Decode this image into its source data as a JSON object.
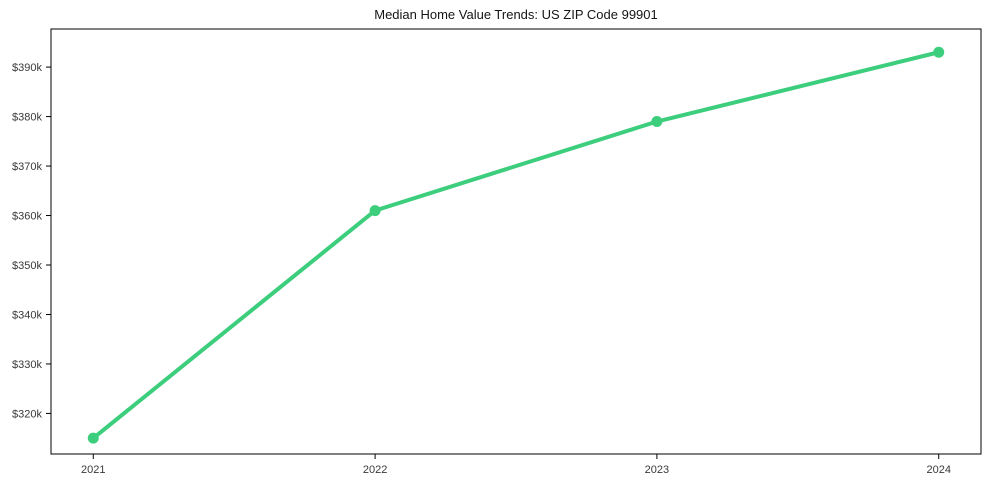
{
  "chart_data": {
    "type": "line",
    "title": "Median Home Value Trends: US ZIP Code 99901",
    "xlabel": "",
    "ylabel": "",
    "x": [
      2021,
      2022,
      2023,
      2024
    ],
    "x_tick_labels": [
      "2021",
      "2022",
      "2023",
      "2024"
    ],
    "values": [
      315000,
      361000,
      379000,
      393000
    ],
    "y_tick_values": [
      320000,
      330000,
      340000,
      350000,
      360000,
      370000,
      380000,
      390000
    ],
    "y_tick_labels": [
      "$320k",
      "$330k",
      "$340k",
      "$350k",
      "$360k",
      "$370k",
      "$380k",
      "$390k"
    ],
    "xlim": [
      2020.85,
      2024.15
    ],
    "ylim": [
      311800,
      397700
    ],
    "grid": false,
    "legend": "none",
    "line_color": "#3dce7d",
    "line_width": 4,
    "marker": "circle",
    "marker_radius": 5.5,
    "axis_color": "#000000",
    "tick_label_color": "#3a3a3a",
    "background_color": "#ffffff"
  }
}
